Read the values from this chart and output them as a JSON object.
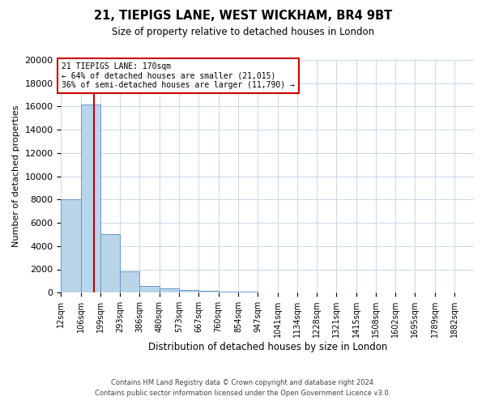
{
  "title": "21, TIEPIGS LANE, WEST WICKHAM, BR4 9BT",
  "subtitle": "Size of property relative to detached houses in London",
  "xlabel": "Distribution of detached houses by size in London",
  "ylabel": "Number of detached properties",
  "bin_labels": [
    "12sqm",
    "106sqm",
    "199sqm",
    "293sqm",
    "386sqm",
    "480sqm",
    "573sqm",
    "667sqm",
    "760sqm",
    "854sqm",
    "947sqm",
    "1041sqm",
    "1134sqm",
    "1228sqm",
    "1321sqm",
    "1415sqm",
    "1508sqm",
    "1602sqm",
    "1695sqm",
    "1789sqm",
    "1882sqm"
  ],
  "bar_heights": [
    8000,
    16200,
    5000,
    1800,
    600,
    350,
    200,
    150,
    100,
    70,
    30,
    15,
    10,
    8,
    5,
    4,
    3,
    2,
    2,
    1,
    1
  ],
  "bar_color": "#bad4e8",
  "bar_edge_color": "#6699cc",
  "property_size": 170,
  "property_label": "21 TIEPIGS LANE: 170sqm",
  "annotation_line1": "← 64% of detached houses are smaller (21,015)",
  "annotation_line2": "36% of semi-detached houses are larger (11,790) →",
  "vline_color": "#cc0000",
  "ylim": [
    0,
    20000
  ],
  "yticks": [
    0,
    2000,
    4000,
    6000,
    8000,
    10000,
    12000,
    14000,
    16000,
    18000,
    20000
  ],
  "footer_line1": "Contains HM Land Registry data © Crown copyright and database right 2024.",
  "footer_line2": "Contains public sector information licensed under the Open Government Licence v3.0.",
  "background_color": "#ffffff",
  "grid_color": "#c8d8e8",
  "bin_edges": [
    12,
    106,
    199,
    293,
    386,
    480,
    573,
    667,
    760,
    854,
    947,
    1041,
    1134,
    1228,
    1321,
    1415,
    1508,
    1602,
    1695,
    1789,
    1882,
    1975
  ]
}
